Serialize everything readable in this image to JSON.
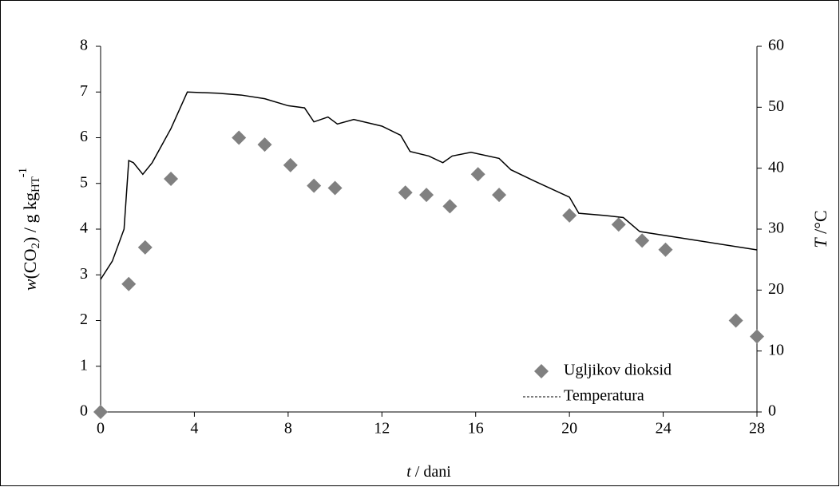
{
  "chart_data": {
    "type": "scatter",
    "x_label": [
      "t",
      " / dani"
    ],
    "y_label": [
      "w",
      "(CO",
      "2",
      ") / g kg",
      "HT",
      "-1"
    ],
    "y2_label": [
      "T",
      " /°C"
    ],
    "xlim": [
      0,
      28
    ],
    "xticks": [
      0,
      4,
      8,
      12,
      16,
      20,
      24,
      28
    ],
    "ylim": [
      0,
      8
    ],
    "yticks": [
      0,
      1,
      2,
      3,
      4,
      5,
      6,
      7,
      8
    ],
    "y2lim": [
      0,
      60
    ],
    "y2ticks": [
      0,
      10,
      20,
      30,
      40,
      50,
      60
    ],
    "legend": "lower right",
    "series": [
      {
        "name": "Ugljikov dioksid",
        "color": "#808080",
        "marker": "diamond",
        "x": [
          0,
          1.2,
          1.9,
          3,
          5.9,
          7,
          8.1,
          9.1,
          10,
          13,
          13.9,
          14.9,
          16.1,
          17,
          20,
          22.1,
          23.1,
          24.1,
          27.1,
          28
        ],
        "values": [
          0,
          2.8,
          3.6,
          5.1,
          6,
          5.85,
          5.4,
          4.95,
          4.9,
          4.8,
          4.75,
          4.5,
          5.2,
          4.75,
          4.3,
          4.1,
          3.75,
          3.55,
          2,
          1.65
        ]
      },
      {
        "name": "Temperatura",
        "color": "#000000",
        "type": "line",
        "axis": "y2",
        "x": [
          0,
          0.5,
          1.0,
          1.2,
          1.4,
          1.8,
          2.2,
          3,
          3.7,
          5,
          6,
          7,
          8,
          8.7,
          9.1,
          9.7,
          10.1,
          10.8,
          12,
          12.8,
          13.2,
          14,
          14.6,
          15,
          15.8,
          17,
          17.5,
          18.5,
          20,
          20.4,
          21.5,
          22.3,
          23,
          28
        ],
        "values": [
          21.75,
          24.75,
          30,
          41.25,
          40.9,
          39,
          40.9,
          46.5,
          52.5,
          52.3,
          52,
          51.4,
          50.25,
          49.9,
          47.6,
          48.4,
          47.25,
          48,
          46.9,
          45.4,
          42.75,
          42,
          40.9,
          42,
          42.6,
          41.6,
          39.75,
          37.9,
          35.25,
          32.6,
          32.25,
          31.9,
          29.6,
          26.6
        ]
      }
    ]
  }
}
